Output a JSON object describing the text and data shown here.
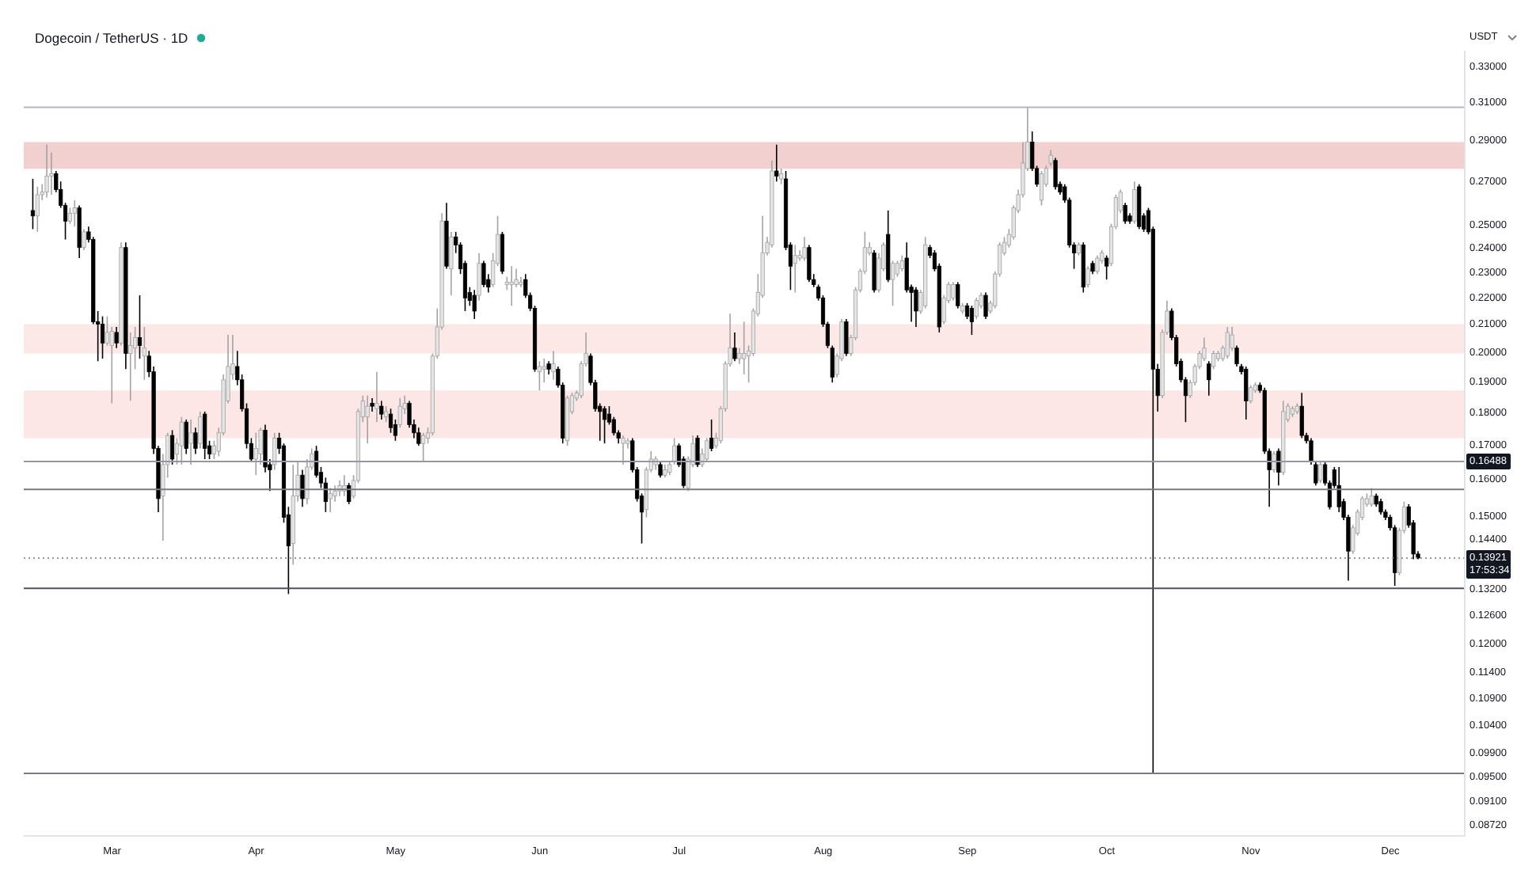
{
  "chart_data": {
    "type": "candlestick",
    "title": "Dogecoin / TetherUS · 1D",
    "ylabel": "USDT",
    "log": true,
    "ylim": [
      0.0855,
      0.339
    ],
    "yticks": [
      {
        "value": 0.33,
        "label": "0.33000"
      },
      {
        "value": 0.31,
        "label": "0.31000"
      },
      {
        "value": 0.29,
        "label": "0.29000"
      },
      {
        "value": 0.27,
        "label": "0.27000"
      },
      {
        "value": 0.25,
        "label": "0.25000"
      },
      {
        "value": 0.24,
        "label": "0.24000"
      },
      {
        "value": 0.23,
        "label": "0.23000"
      },
      {
        "value": 0.22,
        "label": "0.22000"
      },
      {
        "value": 0.21,
        "label": "0.21000"
      },
      {
        "value": 0.2,
        "label": "0.20000"
      },
      {
        "value": 0.19,
        "label": "0.19000"
      },
      {
        "value": 0.18,
        "label": "0.18000"
      },
      {
        "value": 0.17,
        "label": "0.17000"
      },
      {
        "value": 0.16,
        "label": "0.16000"
      },
      {
        "value": 0.15,
        "label": "0.15000"
      },
      {
        "value": 0.144,
        "label": "0.14400"
      },
      {
        "value": 0.132,
        "label": "0.13200"
      },
      {
        "value": 0.126,
        "label": "0.12600"
      },
      {
        "value": 0.12,
        "label": "0.12000"
      },
      {
        "value": 0.114,
        "label": "0.11400"
      },
      {
        "value": 0.109,
        "label": "0.10900"
      },
      {
        "value": 0.104,
        "label": "0.10400"
      },
      {
        "value": 0.099,
        "label": "0.09900"
      },
      {
        "value": 0.095,
        "label": "0.09500"
      },
      {
        "value": 0.091,
        "label": "0.09100"
      },
      {
        "value": 0.0872,
        "label": "0.08720"
      }
    ],
    "xlim": [
      "--02-10",
      "--12-17"
    ],
    "xticks": [
      {
        "value": "--03-01",
        "label": "Mar"
      },
      {
        "value": "--04-01",
        "label": "Apr"
      },
      {
        "value": "--05-01",
        "label": "May"
      },
      {
        "value": "--06-01",
        "label": "Jun"
      },
      {
        "value": "--07-01",
        "label": "Jul"
      },
      {
        "value": "--08-01",
        "label": "Aug"
      },
      {
        "value": "--09-01",
        "label": "Sep"
      },
      {
        "value": "--10-01",
        "label": "Oct"
      },
      {
        "value": "--11-01",
        "label": "Nov"
      },
      {
        "value": "--12-01",
        "label": "Dec"
      }
    ],
    "x": [
      "--02-12",
      "--02-13",
      "--02-14",
      "--02-15",
      "--02-16",
      "--02-17",
      "--02-18",
      "--02-19",
      "--02-20",
      "--02-21",
      "--02-22",
      "--02-23",
      "--02-24",
      "--02-25",
      "--02-26",
      "--02-27",
      "--02-28",
      "--03-01",
      "--03-02",
      "--03-03",
      "--03-04",
      "--03-05",
      "--03-06",
      "--03-07",
      "--03-08",
      "--03-09",
      "--03-10",
      "--03-11",
      "--03-12",
      "--03-13",
      "--03-14",
      "--03-15",
      "--03-16",
      "--03-17",
      "--03-18",
      "--03-19",
      "--03-20",
      "--03-21",
      "--03-22",
      "--03-23",
      "--03-24",
      "--03-25",
      "--03-26",
      "--03-27",
      "--03-28",
      "--03-29",
      "--03-30",
      "--03-31",
      "--04-01",
      "--04-02",
      "--04-03",
      "--04-04",
      "--04-05",
      "--04-06",
      "--04-07",
      "--04-08",
      "--04-09",
      "--04-10",
      "--04-11",
      "--04-12",
      "--04-13",
      "--04-14",
      "--04-15",
      "--04-16",
      "--04-17",
      "--04-18",
      "--04-19",
      "--04-20",
      "--04-21",
      "--04-22",
      "--04-23",
      "--04-24",
      "--04-25",
      "--04-26",
      "--04-27",
      "--04-28",
      "--04-29",
      "--04-30",
      "--05-01",
      "--05-02",
      "--05-03",
      "--05-04",
      "--05-05",
      "--05-06",
      "--05-07",
      "--05-08",
      "--05-09",
      "--05-10",
      "--05-11",
      "--05-12",
      "--05-13",
      "--05-14",
      "--05-15",
      "--05-16",
      "--05-17",
      "--05-18",
      "--05-19",
      "--05-20",
      "--05-21",
      "--05-22",
      "--05-23",
      "--05-24",
      "--05-25",
      "--05-26",
      "--05-27",
      "--05-28",
      "--05-29",
      "--05-30",
      "--05-31",
      "--06-01",
      "--06-02",
      "--06-03",
      "--06-04",
      "--06-05",
      "--06-06",
      "--06-07",
      "--06-08",
      "--06-09",
      "--06-10",
      "--06-11",
      "--06-12",
      "--06-13",
      "--06-14",
      "--06-15",
      "--06-16",
      "--06-17",
      "--06-18",
      "--06-19",
      "--06-20",
      "--06-21",
      "--06-22",
      "--06-23",
      "--06-24",
      "--06-25",
      "--06-26",
      "--06-27",
      "--06-28",
      "--06-29",
      "--06-30",
      "--07-01",
      "--07-02",
      "--07-03",
      "--07-04",
      "--07-05",
      "--07-06",
      "--07-07",
      "--07-08",
      "--07-09",
      "--07-10",
      "--07-11",
      "--07-12",
      "--07-13",
      "--07-14",
      "--07-15",
      "--07-16",
      "--07-17",
      "--07-18",
      "--07-19",
      "--07-20",
      "--07-21",
      "--07-22",
      "--07-23",
      "--07-24",
      "--07-25",
      "--07-26",
      "--07-27",
      "--07-28",
      "--07-29",
      "--07-30",
      "--07-31",
      "--08-01",
      "--08-02",
      "--08-03",
      "--08-04",
      "--08-05",
      "--08-06",
      "--08-07",
      "--08-08",
      "--08-09",
      "--08-10",
      "--08-11",
      "--08-12",
      "--08-13",
      "--08-14",
      "--08-15",
      "--08-16",
      "--08-17",
      "--08-18",
      "--08-19",
      "--08-20",
      "--08-21",
      "--08-22",
      "--08-23",
      "--08-24",
      "--08-25",
      "--08-26",
      "--08-27",
      "--08-28",
      "--08-29",
      "--08-30",
      "--08-31",
      "--09-01",
      "--09-02",
      "--09-03",
      "--09-04",
      "--09-05",
      "--09-06",
      "--09-07",
      "--09-08",
      "--09-09",
      "--09-10",
      "--09-11",
      "--09-12",
      "--09-13",
      "--09-14",
      "--09-15",
      "--09-16",
      "--09-17",
      "--09-18",
      "--09-19",
      "--09-20",
      "--09-21",
      "--09-22",
      "--09-23",
      "--09-24",
      "--09-25",
      "--09-26",
      "--09-27",
      "--09-28",
      "--09-29",
      "--09-30",
      "--10-01",
      "--10-02",
      "--10-03",
      "--10-04",
      "--10-05",
      "--10-06",
      "--10-07",
      "--10-08",
      "--10-09",
      "--10-10",
      "--10-11",
      "--10-12",
      "--10-13",
      "--10-14",
      "--10-15",
      "--10-16",
      "--10-17",
      "--10-18",
      "--10-19",
      "--10-20",
      "--10-21",
      "--10-22",
      "--10-23",
      "--10-24",
      "--10-25",
      "--10-26",
      "--10-27",
      "--10-28",
      "--10-29",
      "--10-30",
      "--10-31",
      "--11-01",
      "--11-02",
      "--11-03",
      "--11-04",
      "--11-05",
      "--11-06",
      "--11-07",
      "--11-08",
      "--11-09",
      "--11-10",
      "--11-11",
      "--11-12",
      "--11-13",
      "--11-14",
      "--11-15",
      "--11-16",
      "--11-17",
      "--11-18",
      "--11-19",
      "--11-20",
      "--11-21",
      "--11-22",
      "--11-23",
      "--11-24",
      "--11-25",
      "--11-26",
      "--11-27",
      "--11-28",
      "--11-29",
      "--11-30",
      "--12-01",
      "--12-02",
      "--12-03",
      "--12-04",
      "--12-05",
      "--12-06",
      "--12-07"
    ],
    "ohlc": [
      [
        0.2561,
        0.2707,
        0.2479,
        0.2537
      ],
      [
        0.2537,
        0.267,
        0.2467,
        0.2633
      ],
      [
        0.2633,
        0.2682,
        0.2608,
        0.2645
      ],
      [
        0.2645,
        0.2875,
        0.262,
        0.272
      ],
      [
        0.272,
        0.2835,
        0.2633,
        0.2732
      ],
      [
        0.2732,
        0.2745,
        0.2645,
        0.2657
      ],
      [
        0.2657,
        0.2695,
        0.2573,
        0.2584
      ],
      [
        0.2584,
        0.2596,
        0.2434,
        0.2514
      ],
      [
        0.2514,
        0.2573,
        0.2502,
        0.2549
      ],
      [
        0.2549,
        0.2608,
        0.249,
        0.2573
      ],
      [
        0.2573,
        0.2584,
        0.2356,
        0.24
      ],
      [
        0.24,
        0.2479,
        0.2389,
        0.2467
      ],
      [
        0.2467,
        0.249,
        0.2422,
        0.2434
      ],
      [
        0.2434,
        0.2445,
        0.2098,
        0.2107
      ],
      [
        0.2107,
        0.2147,
        0.1966,
        0.2098
      ],
      [
        0.2098,
        0.2127,
        0.1975,
        0.203
      ],
      [
        0.203,
        0.2127,
        0.2021,
        0.2068
      ],
      [
        0.2021,
        0.2088,
        0.1826,
        0.2072
      ],
      [
        0.2068,
        0.2088,
        0.2012,
        0.203
      ],
      [
        0.203,
        0.2422,
        0.2021,
        0.24
      ],
      [
        0.24,
        0.2422,
        0.1939,
        0.1993
      ],
      [
        0.1993,
        0.2068,
        0.1834,
        0.2021
      ],
      [
        0.2012,
        0.2088,
        0.1939,
        0.2049
      ],
      [
        0.2049,
        0.2207,
        0.1975,
        0.2021
      ],
      [
        0.1984,
        0.2088,
        0.1903,
        0.2012
      ],
      [
        0.1984,
        0.2002,
        0.1912,
        0.193
      ],
      [
        0.193,
        0.1948,
        0.1671,
        0.1687
      ],
      [
        0.1687,
        0.1695,
        0.1509,
        0.1545
      ],
      [
        0.1552,
        0.1671,
        0.1435,
        0.164
      ],
      [
        0.164,
        0.1734,
        0.1603,
        0.1726
      ],
      [
        0.1726,
        0.1742,
        0.164,
        0.1656
      ],
      [
        0.1671,
        0.1718,
        0.164,
        0.1702
      ],
      [
        0.1695,
        0.1783,
        0.164,
        0.1767
      ],
      [
        0.1767,
        0.1775,
        0.1671,
        0.1687
      ],
      [
        0.1702,
        0.1775,
        0.164,
        0.1734
      ],
      [
        0.1734,
        0.175,
        0.1671,
        0.1687
      ],
      [
        0.1702,
        0.18,
        0.1687,
        0.1783
      ],
      [
        0.1792,
        0.18,
        0.1656,
        0.1687
      ],
      [
        0.1695,
        0.171,
        0.1656,
        0.1671
      ],
      [
        0.1671,
        0.171,
        0.1656,
        0.1695
      ],
      [
        0.1679,
        0.175,
        0.1664,
        0.1734
      ],
      [
        0.1734,
        0.1921,
        0.1726,
        0.1903
      ],
      [
        0.1834,
        0.2059,
        0.1826,
        0.1948
      ],
      [
        0.1921,
        0.2059,
        0.1903,
        0.1957
      ],
      [
        0.1948,
        0.2002,
        0.1885,
        0.1903
      ],
      [
        0.1903,
        0.1921,
        0.18,
        0.1809
      ],
      [
        0.1809,
        0.1826,
        0.1687,
        0.1702
      ],
      [
        0.1702,
        0.1718,
        0.1648,
        0.1656
      ],
      [
        0.1656,
        0.1734,
        0.161,
        0.1687
      ],
      [
        0.1671,
        0.175,
        0.164,
        0.1742
      ],
      [
        0.1742,
        0.1759,
        0.1618,
        0.1633
      ],
      [
        0.164,
        0.1656,
        0.1566,
        0.1625
      ],
      [
        0.164,
        0.1734,
        0.1625,
        0.1718
      ],
      [
        0.1718,
        0.1734,
        0.1671,
        0.1687
      ],
      [
        0.1695,
        0.1702,
        0.1481,
        0.1495
      ],
      [
        0.1502,
        0.1523,
        0.1307,
        0.1422
      ],
      [
        0.1428,
        0.164,
        0.1376,
        0.1552
      ],
      [
        0.1552,
        0.1648,
        0.1537,
        0.161
      ],
      [
        0.161,
        0.1625,
        0.1523,
        0.1545
      ],
      [
        0.1545,
        0.1656,
        0.153,
        0.1633
      ],
      [
        0.1633,
        0.1687,
        0.1625,
        0.1671
      ],
      [
        0.1679,
        0.1695,
        0.1603,
        0.161
      ],
      [
        0.1618,
        0.1633,
        0.1574,
        0.1588
      ],
      [
        0.1588,
        0.1603,
        0.1509,
        0.1537
      ],
      [
        0.1545,
        0.1574,
        0.1509,
        0.1559
      ],
      [
        0.1552,
        0.1581,
        0.1537,
        0.1566
      ],
      [
        0.1566,
        0.1595,
        0.1552,
        0.1581
      ],
      [
        0.1566,
        0.161,
        0.1552,
        0.1581
      ],
      [
        0.1581,
        0.1588,
        0.153,
        0.1537
      ],
      [
        0.1552,
        0.161,
        0.1545,
        0.1595
      ],
      [
        0.1595,
        0.1809,
        0.1588,
        0.18
      ],
      [
        0.1783,
        0.1851,
        0.1767,
        0.1834
      ],
      [
        0.1783,
        0.1851,
        0.1702,
        0.1817
      ],
      [
        0.1826,
        0.1843,
        0.18,
        0.1817
      ],
      [
        0.1809,
        0.193,
        0.1767,
        0.1826
      ],
      [
        0.1817,
        0.1834,
        0.1775,
        0.1792
      ],
      [
        0.1783,
        0.1817,
        0.1767,
        0.18
      ],
      [
        0.1792,
        0.1809,
        0.1734,
        0.175
      ],
      [
        0.1759,
        0.1775,
        0.171,
        0.1726
      ],
      [
        0.1759,
        0.1843,
        0.175,
        0.1817
      ],
      [
        0.1809,
        0.1851,
        0.1792,
        0.1826
      ],
      [
        0.1826,
        0.1834,
        0.175,
        0.1759
      ],
      [
        0.1759,
        0.1775,
        0.1718,
        0.1734
      ],
      [
        0.1734,
        0.175,
        0.1695,
        0.1702
      ],
      [
        0.1702,
        0.1734,
        0.1648,
        0.1726
      ],
      [
        0.1718,
        0.175,
        0.1702,
        0.1734
      ],
      [
        0.1734,
        0.1993,
        0.1726,
        0.1984
      ],
      [
        0.1984,
        0.2157,
        0.1975,
        0.2088
      ],
      [
        0.2088,
        0.2549,
        0.2078,
        0.2514
      ],
      [
        0.2514,
        0.2596,
        0.2312,
        0.2323
      ],
      [
        0.2312,
        0.2467,
        0.2207,
        0.2445
      ],
      [
        0.2445,
        0.2467,
        0.2377,
        0.2411
      ],
      [
        0.2411,
        0.2422,
        0.2291,
        0.2312
      ],
      [
        0.2334,
        0.2345,
        0.2147,
        0.2197
      ],
      [
        0.2218,
        0.2239,
        0.2167,
        0.2187
      ],
      [
        0.2207,
        0.2228,
        0.2117,
        0.2147
      ],
      [
        0.2207,
        0.2377,
        0.2187,
        0.2334
      ],
      [
        0.2334,
        0.2345,
        0.2239,
        0.2249
      ],
      [
        0.2269,
        0.2291,
        0.2218,
        0.2239
      ],
      [
        0.2249,
        0.2377,
        0.2239,
        0.2345
      ],
      [
        0.2334,
        0.2537,
        0.2323,
        0.2456
      ],
      [
        0.2456,
        0.2467,
        0.2291,
        0.2302
      ],
      [
        0.2249,
        0.228,
        0.2228,
        0.2259
      ],
      [
        0.2249,
        0.2323,
        0.2167,
        0.2259
      ],
      [
        0.2249,
        0.2312,
        0.2239,
        0.2269
      ],
      [
        0.2249,
        0.228,
        0.2239,
        0.2259
      ],
      [
        0.2269,
        0.2291,
        0.2197,
        0.2207
      ],
      [
        0.2207,
        0.2218,
        0.2147,
        0.2157
      ],
      [
        0.2157,
        0.2167,
        0.193,
        0.1939
      ],
      [
        0.193,
        0.1966,
        0.1868,
        0.1948
      ],
      [
        0.1939,
        0.1975,
        0.1894,
        0.1948
      ],
      [
        0.1957,
        0.1966,
        0.1921,
        0.1939
      ],
      [
        0.193,
        0.2002,
        0.1903,
        0.1957
      ],
      [
        0.1939,
        0.1948,
        0.1877,
        0.1885
      ],
      [
        0.1885,
        0.1894,
        0.1702,
        0.1718
      ],
      [
        0.171,
        0.1851,
        0.1695,
        0.1843
      ],
      [
        0.18,
        0.186,
        0.1792,
        0.1851
      ],
      [
        0.1843,
        0.1868,
        0.1834,
        0.186
      ],
      [
        0.1851,
        0.1966,
        0.1843,
        0.1957
      ],
      [
        0.1957,
        0.2068,
        0.1948,
        0.1993
      ],
      [
        0.1984,
        0.1993,
        0.1885,
        0.1894
      ],
      [
        0.1894,
        0.1903,
        0.18,
        0.1809
      ],
      [
        0.1817,
        0.1826,
        0.171,
        0.18
      ],
      [
        0.1809,
        0.1817,
        0.1702,
        0.1775
      ],
      [
        0.1792,
        0.1817,
        0.1759,
        0.1767
      ],
      [
        0.1775,
        0.1783,
        0.1726,
        0.1734
      ],
      [
        0.1734,
        0.1742,
        0.1702,
        0.1718
      ],
      [
        0.1702,
        0.1726,
        0.164,
        0.1718
      ],
      [
        0.1702,
        0.1718,
        0.1687,
        0.171
      ],
      [
        0.171,
        0.1718,
        0.1618,
        0.1625
      ],
      [
        0.1625,
        0.1633,
        0.1537,
        0.1545
      ],
      [
        0.1552,
        0.1559,
        0.1428,
        0.1509
      ],
      [
        0.1516,
        0.1633,
        0.1495,
        0.1625
      ],
      [
        0.1625,
        0.1679,
        0.1618,
        0.1656
      ],
      [
        0.164,
        0.1664,
        0.1625,
        0.1656
      ],
      [
        0.164,
        0.1648,
        0.1603,
        0.161
      ],
      [
        0.161,
        0.164,
        0.1603,
        0.1625
      ],
      [
        0.1618,
        0.1648,
        0.161,
        0.164
      ],
      [
        0.1648,
        0.1718,
        0.164,
        0.1695
      ],
      [
        0.1695,
        0.1702,
        0.1633,
        0.164
      ],
      [
        0.1656,
        0.1664,
        0.1574,
        0.1581
      ],
      [
        0.1574,
        0.1664,
        0.1566,
        0.1656
      ],
      [
        0.164,
        0.1726,
        0.1633,
        0.1702
      ],
      [
        0.1718,
        0.1726,
        0.1633,
        0.164
      ],
      [
        0.164,
        0.1687,
        0.1633,
        0.1671
      ],
      [
        0.1656,
        0.1718,
        0.1648,
        0.171
      ],
      [
        0.1718,
        0.1775,
        0.1679,
        0.1687
      ],
      [
        0.1695,
        0.1734,
        0.1687,
        0.1718
      ],
      [
        0.171,
        0.1817,
        0.1702,
        0.1809
      ],
      [
        0.1809,
        0.1966,
        0.18,
        0.1957
      ],
      [
        0.1957,
        0.2137,
        0.1948,
        0.2012
      ],
      [
        0.2012,
        0.2068,
        0.1966,
        0.1975
      ],
      [
        0.1975,
        0.2012,
        0.1957,
        0.1993
      ],
      [
        0.1975,
        0.2107,
        0.1921,
        0.1993
      ],
      [
        0.1984,
        0.2021,
        0.1894,
        0.2002
      ],
      [
        0.1993,
        0.2157,
        0.1984,
        0.2147
      ],
      [
        0.2137,
        0.2291,
        0.2127,
        0.2218
      ],
      [
        0.2207,
        0.2537,
        0.2197,
        0.2377
      ],
      [
        0.2377,
        0.2445,
        0.2367,
        0.2422
      ],
      [
        0.2411,
        0.2796,
        0.24,
        0.2745
      ],
      [
        0.2745,
        0.2875,
        0.2695,
        0.272
      ],
      [
        0.2707,
        0.2757,
        0.2682,
        0.2732
      ],
      [
        0.2707,
        0.2745,
        0.2389,
        0.24
      ],
      [
        0.2411,
        0.2422,
        0.2228,
        0.2323
      ],
      [
        0.2334,
        0.2411,
        0.2218,
        0.2367
      ],
      [
        0.2356,
        0.2389,
        0.2345,
        0.2367
      ],
      [
        0.2356,
        0.2445,
        0.2345,
        0.24
      ],
      [
        0.24,
        0.2411,
        0.2259,
        0.2269
      ],
      [
        0.2269,
        0.2291,
        0.2239,
        0.2249
      ],
      [
        0.2239,
        0.2249,
        0.2187,
        0.2197
      ],
      [
        0.2197,
        0.2207,
        0.2088,
        0.2098
      ],
      [
        0.2098,
        0.2107,
        0.2012,
        0.2021
      ],
      [
        0.2012,
        0.2021,
        0.1894,
        0.1912
      ],
      [
        0.1921,
        0.1993,
        0.1912,
        0.1984
      ],
      [
        0.1975,
        0.2117,
        0.1966,
        0.2107
      ],
      [
        0.2107,
        0.2117,
        0.1984,
        0.1993
      ],
      [
        0.1993,
        0.2059,
        0.1984,
        0.2049
      ],
      [
        0.2049,
        0.2239,
        0.204,
        0.2228
      ],
      [
        0.2228,
        0.2312,
        0.2218,
        0.2302
      ],
      [
        0.2302,
        0.2467,
        0.2291,
        0.24
      ],
      [
        0.2377,
        0.2422,
        0.2367,
        0.24
      ],
      [
        0.2377,
        0.2389,
        0.2218,
        0.2228
      ],
      [
        0.2228,
        0.2377,
        0.2218,
        0.2356
      ],
      [
        0.2312,
        0.2422,
        0.2302,
        0.2411
      ],
      [
        0.2456,
        0.2561,
        0.2259,
        0.2269
      ],
      [
        0.2269,
        0.2345,
        0.2167,
        0.2334
      ],
      [
        0.2291,
        0.2345,
        0.228,
        0.2334
      ],
      [
        0.2312,
        0.2367,
        0.2302,
        0.2345
      ],
      [
        0.2356,
        0.2422,
        0.2218,
        0.2228
      ],
      [
        0.2239,
        0.2249,
        0.2107,
        0.2218
      ],
      [
        0.2228,
        0.2239,
        0.2088,
        0.2147
      ],
      [
        0.2147,
        0.2228,
        0.2137,
        0.2218
      ],
      [
        0.2167,
        0.2445,
        0.2157,
        0.2411
      ],
      [
        0.24,
        0.2411,
        0.2356,
        0.2367
      ],
      [
        0.2377,
        0.2389,
        0.2302,
        0.2312
      ],
      [
        0.2323,
        0.2334,
        0.2068,
        0.2088
      ],
      [
        0.2107,
        0.2207,
        0.2098,
        0.2197
      ],
      [
        0.2187,
        0.2259,
        0.2177,
        0.2249
      ],
      [
        0.2197,
        0.2259,
        0.2187,
        0.2249
      ],
      [
        0.2249,
        0.2259,
        0.2157,
        0.2167
      ],
      [
        0.2147,
        0.2177,
        0.2137,
        0.2167
      ],
      [
        0.2167,
        0.2177,
        0.2117,
        0.2127
      ],
      [
        0.2157,
        0.2167,
        0.2059,
        0.2107
      ],
      [
        0.2127,
        0.2197,
        0.2117,
        0.2187
      ],
      [
        0.2167,
        0.2218,
        0.2157,
        0.2207
      ],
      [
        0.2207,
        0.2218,
        0.2117,
        0.2127
      ],
      [
        0.2147,
        0.2187,
        0.2137,
        0.2177
      ],
      [
        0.2167,
        0.2302,
        0.2157,
        0.2291
      ],
      [
        0.2291,
        0.2422,
        0.228,
        0.2411
      ],
      [
        0.2377,
        0.2445,
        0.2367,
        0.2422
      ],
      [
        0.2411,
        0.2479,
        0.24,
        0.2456
      ],
      [
        0.2445,
        0.2584,
        0.2434,
        0.2573
      ],
      [
        0.2561,
        0.2657,
        0.2549,
        0.2633
      ],
      [
        0.2633,
        0.2888,
        0.262,
        0.2783
      ],
      [
        0.2757,
        0.3067,
        0.2745,
        0.2888
      ],
      [
        0.2888,
        0.2942,
        0.2745,
        0.2757
      ],
      [
        0.2757,
        0.277,
        0.267,
        0.2682
      ],
      [
        0.2608,
        0.2745,
        0.2584,
        0.2732
      ],
      [
        0.2682,
        0.277,
        0.267,
        0.2757
      ],
      [
        0.2783,
        0.2848,
        0.277,
        0.2822
      ],
      [
        0.2796,
        0.2809,
        0.2657,
        0.267
      ],
      [
        0.2682,
        0.2695,
        0.2633,
        0.2645
      ],
      [
        0.267,
        0.2682,
        0.2596,
        0.2608
      ],
      [
        0.2608,
        0.262,
        0.24,
        0.2411
      ],
      [
        0.2411,
        0.2422,
        0.2312,
        0.2377
      ],
      [
        0.2377,
        0.2422,
        0.2367,
        0.2411
      ],
      [
        0.2411,
        0.2422,
        0.2218,
        0.2239
      ],
      [
        0.2249,
        0.2323,
        0.2239,
        0.2312
      ],
      [
        0.2334,
        0.2345,
        0.2291,
        0.2302
      ],
      [
        0.2302,
        0.2367,
        0.2291,
        0.2356
      ],
      [
        0.2345,
        0.2389,
        0.2334,
        0.2377
      ],
      [
        0.2356,
        0.2367,
        0.2269,
        0.2323
      ],
      [
        0.2334,
        0.2502,
        0.2323,
        0.249
      ],
      [
        0.249,
        0.2633,
        0.2479,
        0.262
      ],
      [
        0.2561,
        0.2657,
        0.2549,
        0.2645
      ],
      [
        0.2584,
        0.2596,
        0.2502,
        0.2514
      ],
      [
        0.2537,
        0.2549,
        0.2502,
        0.2514
      ],
      [
        0.2514,
        0.2695,
        0.2502,
        0.2657
      ],
      [
        0.267,
        0.2682,
        0.2479,
        0.249
      ],
      [
        0.2537,
        0.2549,
        0.2467,
        0.2479
      ],
      [
        0.2561,
        0.2573,
        0.2456,
        0.2467
      ],
      [
        0.2479,
        0.249,
        0.0954,
        0.1939
      ],
      [
        0.1939,
        0.1957,
        0.18,
        0.1851
      ],
      [
        0.1851,
        0.2078,
        0.1843,
        0.2068
      ],
      [
        0.2068,
        0.2187,
        0.2059,
        0.2147
      ],
      [
        0.2147,
        0.2157,
        0.204,
        0.2049
      ],
      [
        0.2049,
        0.2059,
        0.1948,
        0.1957
      ],
      [
        0.1966,
        0.1975,
        0.1894,
        0.1903
      ],
      [
        0.1903,
        0.1912,
        0.1767,
        0.1851
      ],
      [
        0.1851,
        0.1903,
        0.1843,
        0.1894
      ],
      [
        0.1894,
        0.1957,
        0.1885,
        0.1948
      ],
      [
        0.1948,
        0.2002,
        0.1939,
        0.1993
      ],
      [
        0.1975,
        0.2049,
        0.1966,
        0.2012
      ],
      [
        0.1957,
        0.1966,
        0.1851,
        0.1903
      ],
      [
        0.1948,
        0.2002,
        0.1939,
        0.1993
      ],
      [
        0.1975,
        0.2002,
        0.1966,
        0.1993
      ],
      [
        0.1975,
        0.2021,
        0.1966,
        0.2012
      ],
      [
        0.1984,
        0.2088,
        0.1975,
        0.2068
      ],
      [
        0.2012,
        0.2088,
        0.2002,
        0.2059
      ],
      [
        0.2012,
        0.2021,
        0.1948,
        0.1957
      ],
      [
        0.1948,
        0.1957,
        0.1921,
        0.193
      ],
      [
        0.1939,
        0.1948,
        0.1775,
        0.1834
      ],
      [
        0.1834,
        0.1885,
        0.1826,
        0.1877
      ],
      [
        0.1868,
        0.1894,
        0.186,
        0.1885
      ],
      [
        0.1885,
        0.1894,
        0.186,
        0.1868
      ],
      [
        0.1868,
        0.1877,
        0.1671,
        0.1679
      ],
      [
        0.1679,
        0.1687,
        0.1523,
        0.1625
      ],
      [
        0.1625,
        0.1679,
        0.1618,
        0.1671
      ],
      [
        0.1679,
        0.1687,
        0.1581,
        0.1618
      ],
      [
        0.1618,
        0.1834,
        0.161,
        0.18
      ],
      [
        0.1775,
        0.1826,
        0.1767,
        0.1817
      ],
      [
        0.1792,
        0.1817,
        0.1783,
        0.1809
      ],
      [
        0.18,
        0.1826,
        0.1792,
        0.1817
      ],
      [
        0.1817,
        0.186,
        0.1718,
        0.1726
      ],
      [
        0.1726,
        0.1734,
        0.1702,
        0.171
      ],
      [
        0.171,
        0.1718,
        0.164,
        0.1648
      ],
      [
        0.164,
        0.1648,
        0.1581,
        0.1588
      ],
      [
        0.1595,
        0.1648,
        0.1588,
        0.164
      ],
      [
        0.164,
        0.1648,
        0.1581,
        0.1588
      ],
      [
        0.1588,
        0.1595,
        0.1516,
        0.1523
      ],
      [
        0.1625,
        0.1633,
        0.1574,
        0.1581
      ],
      [
        0.1581,
        0.1633,
        0.1509,
        0.1523
      ],
      [
        0.1537,
        0.1545,
        0.1488,
        0.1495
      ],
      [
        0.1495,
        0.1502,
        0.1338,
        0.1409
      ],
      [
        0.1409,
        0.1475,
        0.1402,
        0.1468
      ],
      [
        0.1454,
        0.1516,
        0.1448,
        0.1509
      ],
      [
        0.1495,
        0.1552,
        0.1488,
        0.1545
      ],
      [
        0.153,
        0.1559,
        0.1523,
        0.1545
      ],
      [
        0.153,
        0.1574,
        0.1523,
        0.1552
      ],
      [
        0.1552,
        0.1559,
        0.1523,
        0.153
      ],
      [
        0.1537,
        0.1545,
        0.1502,
        0.1509
      ],
      [
        0.1509,
        0.1516,
        0.1488,
        0.1495
      ],
      [
        0.1495,
        0.1502,
        0.1461,
        0.1468
      ],
      [
        0.1468,
        0.1475,
        0.1326,
        0.1357
      ],
      [
        0.1357,
        0.1468,
        0.1351,
        0.1461
      ],
      [
        0.1461,
        0.1537,
        0.1454,
        0.1523
      ],
      [
        0.1523,
        0.153,
        0.1468,
        0.1475
      ],
      [
        0.1481,
        0.1488,
        0.1389,
        0.1402
      ],
      [
        0.1402,
        0.1409,
        0.1389,
        0.1392
      ]
    ],
    "ref_lines": [
      {
        "axis": "y",
        "value": 0.307,
        "color": "#b2b5be"
      },
      {
        "axis": "y",
        "value": 0.16488,
        "label": "0.16488",
        "color": "#9598a1"
      },
      {
        "axis": "y",
        "value": 0.157,
        "color": "#787b86"
      },
      {
        "axis": "y",
        "value": 0.132,
        "color": "#50535e"
      },
      {
        "axis": "y",
        "value": 0.13921,
        "label": "0.13921\n17:53:34",
        "color": "#9598a1",
        "line_style": "dotted"
      },
      {
        "axis": "y",
        "value": 0.0954,
        "color": "#787b86"
      }
    ],
    "bands": [
      {
        "axis": "y",
        "from": 0.2755,
        "to": 0.2888,
        "color": "#f3d0d0"
      },
      {
        "axis": "y",
        "from": 0.1993,
        "to": 0.2098,
        "color": "#fde8e8"
      },
      {
        "axis": "y",
        "from": 0.1718,
        "to": 0.1868,
        "color": "#fde6e6"
      }
    ]
  }
}
